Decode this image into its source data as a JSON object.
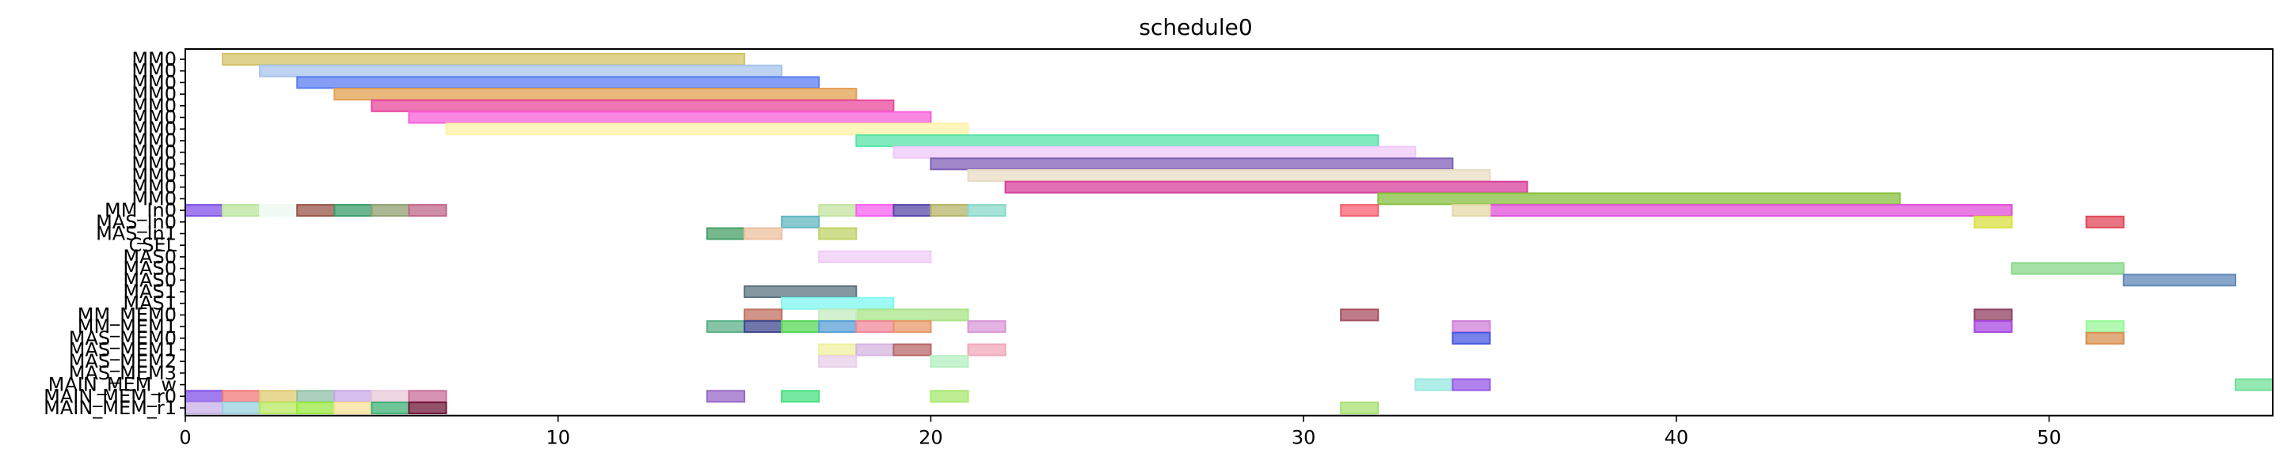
{
  "chart_data": {
    "type": "gantt",
    "title": "schedule0",
    "xlabel": "",
    "ylabel": "",
    "xlim": [
      0,
      56
    ],
    "xticks": [
      0,
      10,
      20,
      30,
      40,
      50
    ],
    "xtick_labels": [
      "0",
      "10",
      "20",
      "30",
      "40",
      "50"
    ],
    "rows": [
      "MM0",
      "MM0",
      "MM0",
      "MM0",
      "MM0",
      "MM0",
      "MM0",
      "MM0",
      "MM0",
      "MM0",
      "MM0",
      "MM0",
      "MM0",
      "MM_In0",
      "MAS_In0",
      "MAS_In1",
      "CSEL",
      "MAS0",
      "MAS0",
      "MAS0",
      "MAS1",
      "MAS1",
      "MM_MEM0",
      "MM_MEM1",
      "MAS_MEM0",
      "MAS_MEM1",
      "MAS_MEM2",
      "MAS_MEM3",
      "MAIN_MEM_w",
      "MAIN_MEM_r0",
      "MAIN_MEM_r1"
    ],
    "tasks": [
      {
        "row": 0,
        "start": 1,
        "end": 15,
        "color": "#d4c46a"
      },
      {
        "row": 1,
        "start": 2,
        "end": 16,
        "color": "#a8c4ec"
      },
      {
        "row": 2,
        "start": 3,
        "end": 17,
        "color": "#5a7ef0"
      },
      {
        "row": 3,
        "start": 4,
        "end": 18,
        "color": "#e4a050"
      },
      {
        "row": 4,
        "start": 5,
        "end": 19,
        "color": "#e8489c"
      },
      {
        "row": 5,
        "start": 6,
        "end": 20,
        "color": "#f860d8"
      },
      {
        "row": 6,
        "start": 7,
        "end": 21,
        "color": "#fff3a8"
      },
      {
        "row": 7,
        "start": 18,
        "end": 32,
        "color": "#58e4a8"
      },
      {
        "row": 8,
        "start": 19,
        "end": 33,
        "color": "#f0c8f8"
      },
      {
        "row": 9,
        "start": 20,
        "end": 34,
        "color": "#8060b8"
      },
      {
        "row": 10,
        "start": 21,
        "end": 35,
        "color": "#e8dcc4"
      },
      {
        "row": 11,
        "start": 22,
        "end": 36,
        "color": "#d8409c"
      },
      {
        "row": 12,
        "start": 32,
        "end": 46,
        "color": "#88c040"
      },
      {
        "row": 13,
        "start": 35,
        "end": 49,
        "color": "#e050d8"
      },
      {
        "row": 13,
        "start": 0,
        "end": 1,
        "color": "#8050e8"
      },
      {
        "row": 13,
        "start": 1,
        "end": 2,
        "color": "#bce69c"
      },
      {
        "row": 13,
        "start": 2,
        "end": 3,
        "color": "#ecfaf0"
      },
      {
        "row": 13,
        "start": 3,
        "end": 4,
        "color": "#985448"
      },
      {
        "row": 13,
        "start": 4,
        "end": 5,
        "color": "#3c9c68"
      },
      {
        "row": 13,
        "start": 5,
        "end": 6,
        "color": "#90a070"
      },
      {
        "row": 13,
        "start": 6,
        "end": 7,
        "color": "#c06888"
      },
      {
        "row": 13,
        "start": 17,
        "end": 18,
        "color": "#c4e4a0"
      },
      {
        "row": 13,
        "start": 18,
        "end": 19,
        "color": "#f860f0"
      },
      {
        "row": 13,
        "start": 19,
        "end": 20,
        "color": "#5848a8"
      },
      {
        "row": 13,
        "start": 20,
        "end": 21,
        "color": "#b4b468"
      },
      {
        "row": 13,
        "start": 21,
        "end": 22,
        "color": "#88d8c8"
      },
      {
        "row": 13,
        "start": 31,
        "end": 32,
        "color": "#f86070"
      },
      {
        "row": 13,
        "start": 34,
        "end": 35,
        "color": "#e4d8a8"
      },
      {
        "row": 14,
        "start": 16,
        "end": 17,
        "color": "#60b8c0"
      },
      {
        "row": 14,
        "start": 48,
        "end": 49,
        "color": "#d8e040"
      },
      {
        "row": 14,
        "start": 51,
        "end": 52,
        "color": "#e04858"
      },
      {
        "row": 15,
        "start": 14,
        "end": 15,
        "color": "#48a068"
      },
      {
        "row": 15,
        "start": 15,
        "end": 16,
        "color": "#ecc0a0"
      },
      {
        "row": 15,
        "start": 17,
        "end": 18,
        "color": "#c0d468"
      },
      {
        "row": 17,
        "start": 17,
        "end": 20,
        "color": "#f0ccf8"
      },
      {
        "row": 18,
        "start": 49,
        "end": 52,
        "color": "#88d888"
      },
      {
        "row": 19,
        "start": 52,
        "end": 55,
        "color": "#6088b8"
      },
      {
        "row": 20,
        "start": 15,
        "end": 18,
        "color": "#5c7480"
      },
      {
        "row": 21,
        "start": 16,
        "end": 19,
        "color": "#80f8f0"
      },
      {
        "row": 22,
        "start": 18,
        "end": 21,
        "color": "#a8e488"
      },
      {
        "row": 22,
        "start": 15,
        "end": 16,
        "color": "#c07060"
      },
      {
        "row": 22,
        "start": 17,
        "end": 18,
        "color": "#c4ecc0"
      },
      {
        "row": 22,
        "start": 31,
        "end": 32,
        "color": "#a85060"
      },
      {
        "row": 22,
        "start": 48,
        "end": 49,
        "color": "#904060"
      },
      {
        "row": 23,
        "start": 14,
        "end": 15,
        "color": "#5cb088"
      },
      {
        "row": 23,
        "start": 15,
        "end": 16,
        "color": "#404890"
      },
      {
        "row": 23,
        "start": 16,
        "end": 17,
        "color": "#58d858"
      },
      {
        "row": 23,
        "start": 17,
        "end": 18,
        "color": "#58a0d8"
      },
      {
        "row": 23,
        "start": 18,
        "end": 19,
        "color": "#f08898"
      },
      {
        "row": 23,
        "start": 19,
        "end": 20,
        "color": "#e89868"
      },
      {
        "row": 23,
        "start": 21,
        "end": 22,
        "color": "#d898d8"
      },
      {
        "row": 23,
        "start": 34,
        "end": 35,
        "color": "#d080d8"
      },
      {
        "row": 23,
        "start": 48,
        "end": 49,
        "color": "#a848e0"
      },
      {
        "row": 23,
        "start": 51,
        "end": 52,
        "color": "#98f898"
      },
      {
        "row": 24,
        "start": 34,
        "end": 35,
        "color": "#4858e0"
      },
      {
        "row": 24,
        "start": 51,
        "end": 52,
        "color": "#d89050"
      },
      {
        "row": 25,
        "start": 17,
        "end": 18,
        "color": "#f0f0a0"
      },
      {
        "row": 25,
        "start": 18,
        "end": 19,
        "color": "#d4b4e0"
      },
      {
        "row": 25,
        "start": 19,
        "end": 20,
        "color": "#b86868"
      },
      {
        "row": 25,
        "start": 21,
        "end": 22,
        "color": "#f0a8b8"
      },
      {
        "row": 26,
        "start": 17,
        "end": 18,
        "color": "#e8d0e8"
      },
      {
        "row": 26,
        "start": 20,
        "end": 21,
        "color": "#b4f0c0"
      },
      {
        "row": 28,
        "start": 33,
        "end": 34,
        "color": "#98e8e0"
      },
      {
        "row": 28,
        "start": 34,
        "end": 35,
        "color": "#9858e8"
      },
      {
        "row": 28,
        "start": 55,
        "end": 56,
        "color": "#70e098"
      },
      {
        "row": 29,
        "start": 0,
        "end": 1,
        "color": "#8050e8"
      },
      {
        "row": 29,
        "start": 1,
        "end": 2,
        "color": "#f07878"
      },
      {
        "row": 29,
        "start": 2,
        "end": 3,
        "color": "#e0cc70"
      },
      {
        "row": 29,
        "start": 3,
        "end": 4,
        "color": "#90c0a8"
      },
      {
        "row": 29,
        "start": 4,
        "end": 5,
        "color": "#c8a8e8"
      },
      {
        "row": 29,
        "start": 5,
        "end": 6,
        "color": "#e8c8d8"
      },
      {
        "row": 29,
        "start": 6,
        "end": 7,
        "color": "#c87098"
      },
      {
        "row": 29,
        "start": 14,
        "end": 15,
        "color": "#9868c8"
      },
      {
        "row": 29,
        "start": 16,
        "end": 17,
        "color": "#48e080"
      },
      {
        "row": 29,
        "start": 20,
        "end": 21,
        "color": "#a8e870"
      },
      {
        "row": 30,
        "start": 0,
        "end": 1,
        "color": "#c8b0e8"
      },
      {
        "row": 30,
        "start": 1,
        "end": 2,
        "color": "#98d0e0"
      },
      {
        "row": 30,
        "start": 2,
        "end": 3,
        "color": "#b8e860"
      },
      {
        "row": 30,
        "start": 3,
        "end": 4,
        "color": "#98e840"
      },
      {
        "row": 30,
        "start": 4,
        "end": 5,
        "color": "#f8e098"
      },
      {
        "row": 30,
        "start": 5,
        "end": 6,
        "color": "#40b078"
      },
      {
        "row": 30,
        "start": 6,
        "end": 7,
        "color": "#701838"
      },
      {
        "row": 30,
        "start": 31,
        "end": 32,
        "color": "#a8e070"
      }
    ]
  }
}
